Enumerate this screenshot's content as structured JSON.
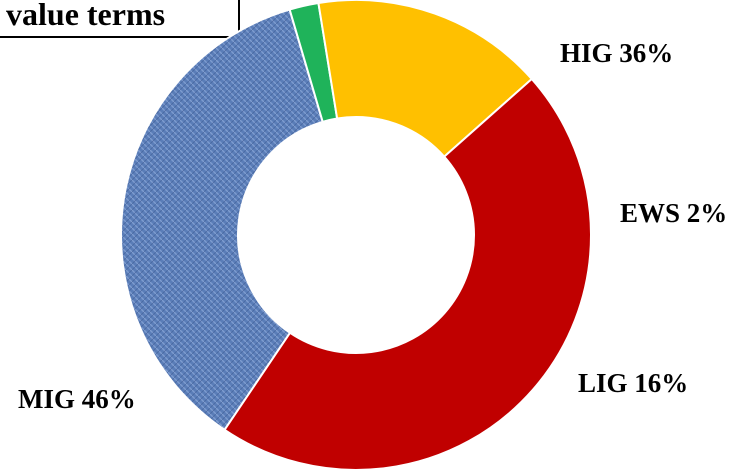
{
  "chart_data": {
    "type": "pie",
    "style": "donut",
    "title": "value terms",
    "categories": [
      "HIG",
      "EWS",
      "LIG",
      "MIG"
    ],
    "values": [
      36,
      2,
      16,
      46
    ],
    "unit": "%",
    "labels": [
      "HIG 36%",
      "EWS 2%",
      "LIG 16%",
      "MIG 46%"
    ],
    "colors": [
      "#5A7DB8",
      "#1FB35A",
      "#FFC000",
      "#C00000"
    ],
    "legend": "none"
  }
}
